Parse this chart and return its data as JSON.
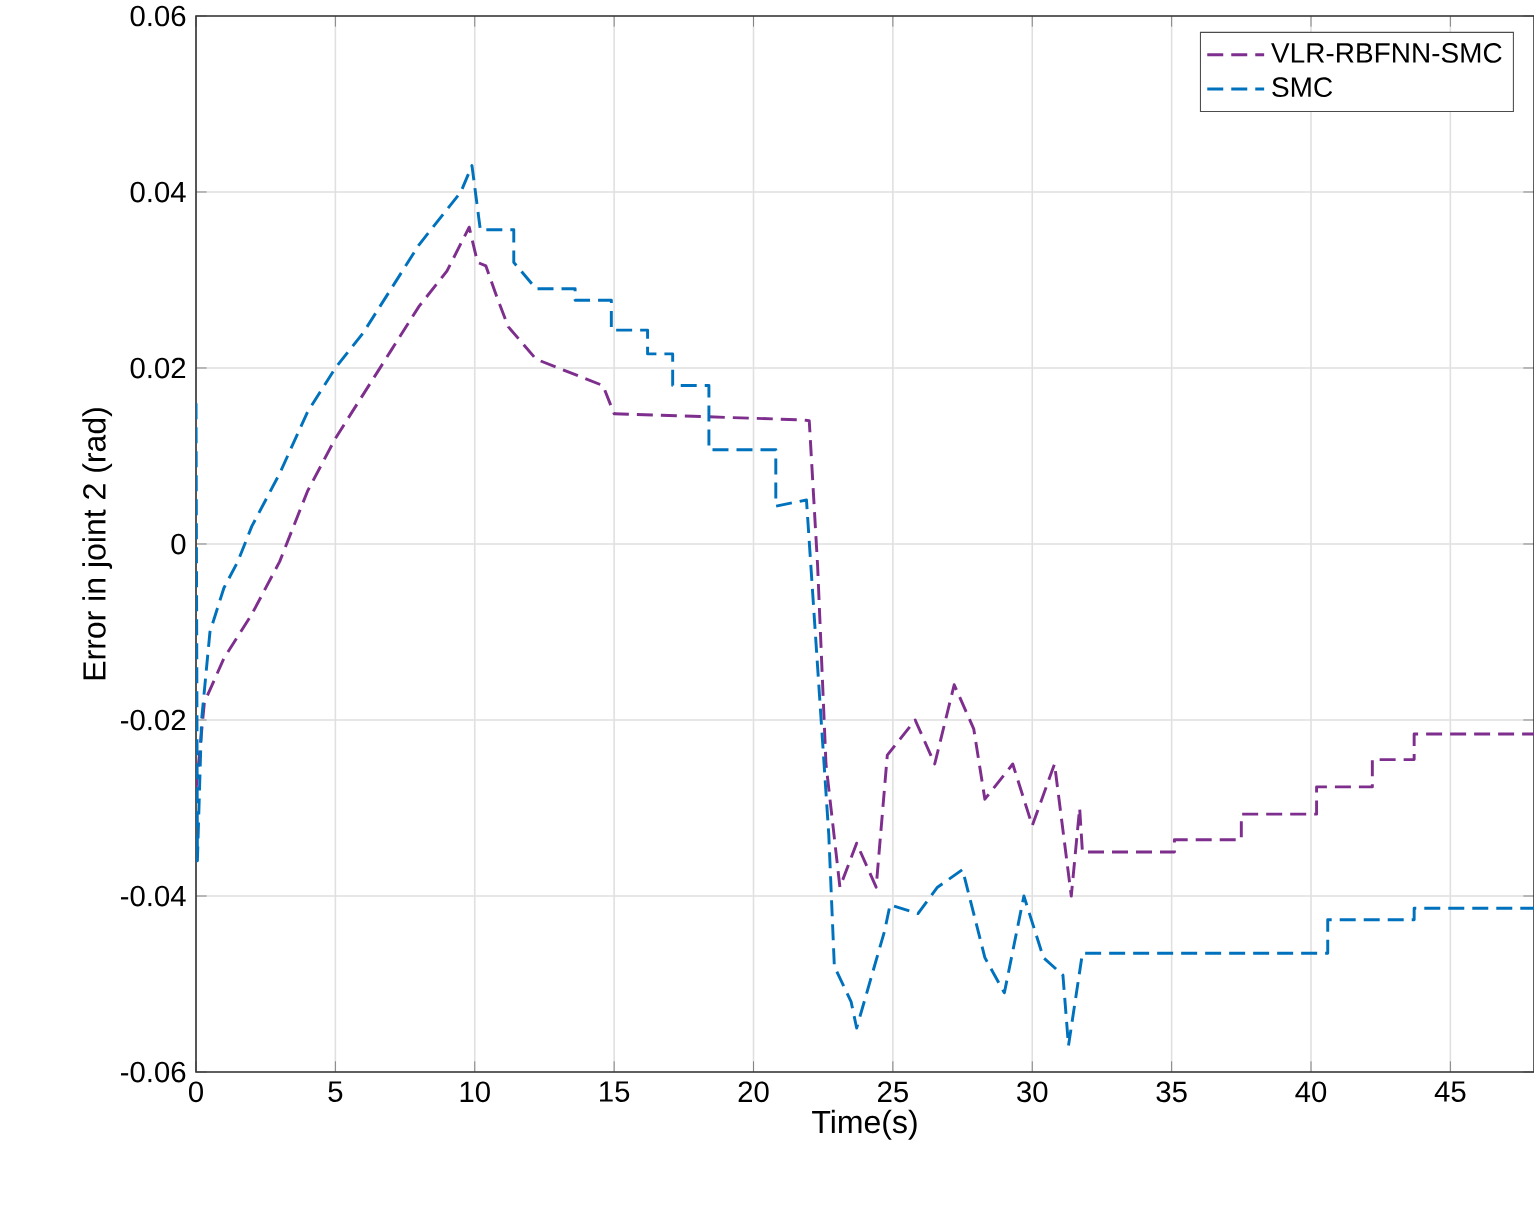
{
  "chart_data": {
    "type": "line",
    "xlabel": "Time(s)",
    "ylabel": "Error in joint 2 (rad)",
    "xlim": [
      0,
      48
    ],
    "ylim": [
      -0.06,
      0.06
    ],
    "xticks": [
      0,
      5,
      10,
      15,
      20,
      25,
      30,
      35,
      40,
      45
    ],
    "yticks": [
      -0.06,
      -0.04,
      -0.02,
      0,
      0.02,
      0.04,
      0.06
    ],
    "grid": true,
    "legend": "top right",
    "line_style": "dashed",
    "marker": "none",
    "series": [
      {
        "name": "VLR-RBFNN-SMC",
        "color": "#7e2f8e",
        "x": [
          0,
          0.3,
          1,
          2,
          3,
          4,
          5,
          6,
          7,
          8,
          9,
          9.8,
          10.1,
          10.4,
          10.8,
          11.2,
          12.2,
          14.6,
          15,
          21.8,
          22,
          22.3,
          22.6,
          23.1,
          23.7,
          24.4,
          24.8,
          25.8,
          26.5,
          27.2,
          27.9,
          28.3,
          29.3,
          30,
          30.8,
          31.4,
          31.7,
          31.8,
          35.1,
          35.1,
          37.5,
          37.5,
          40.2,
          40.2,
          42.2,
          42.2,
          43.7,
          43.7,
          48
        ],
        "values": [
          -0.028,
          -0.018,
          -0.013,
          -0.008,
          -0.002,
          0.006,
          0.012,
          0.017,
          0.022,
          0.027,
          0.031,
          0.036,
          0.032,
          0.0316,
          0.028,
          0.0247,
          0.021,
          0.018,
          0.0148,
          0.0141,
          0.014,
          -0.0025,
          -0.025,
          -0.039,
          -0.034,
          -0.039,
          -0.024,
          -0.02,
          -0.025,
          -0.016,
          -0.021,
          -0.029,
          -0.025,
          -0.032,
          -0.025,
          -0.04,
          -0.03,
          -0.035,
          -0.035,
          -0.0336,
          -0.0336,
          -0.0307,
          -0.0307,
          -0.0276,
          -0.0276,
          -0.0245,
          -0.0245,
          -0.0216,
          -0.0216
        ]
      },
      {
        "name": "SMC",
        "color": "#0072bd",
        "x": [
          0,
          0.05,
          0.2,
          0.5,
          1,
          1.5,
          2,
          3,
          4,
          5,
          6,
          7,
          8,
          9,
          9.5,
          9.9,
          10.2,
          11.4,
          11.4,
          12.2,
          13.6,
          13.6,
          14.9,
          14.9,
          16.2,
          16.2,
          17.1,
          17.1,
          18.4,
          18.4,
          20.8,
          20.8,
          21.9,
          22.7,
          22.9,
          23.5,
          23.7,
          24.7,
          24.9,
          25.9,
          26.6,
          27.5,
          28.3,
          29,
          29.7,
          30.4,
          31.1,
          31.3,
          31.8,
          40.6,
          40.6,
          43.7,
          43.7,
          48
        ],
        "values": [
          0.016,
          -0.036,
          -0.02,
          -0.01,
          -0.005,
          -0.002,
          0.002,
          0.008,
          0.015,
          0.02,
          0.024,
          0.029,
          0.034,
          0.038,
          0.04,
          0.043,
          0.0357,
          0.0357,
          0.032,
          0.029,
          0.029,
          0.0277,
          0.0277,
          0.0243,
          0.0243,
          0.0216,
          0.0216,
          0.018,
          0.018,
          0.0107,
          0.0107,
          0.0043,
          0.005,
          -0.033,
          -0.048,
          -0.052,
          -0.055,
          -0.044,
          -0.041,
          -0.042,
          -0.039,
          -0.037,
          -0.047,
          -0.051,
          -0.04,
          -0.047,
          -0.049,
          -0.057,
          -0.0465,
          -0.0465,
          -0.0427,
          -0.0427,
          -0.0414,
          -0.0414
        ]
      }
    ]
  }
}
